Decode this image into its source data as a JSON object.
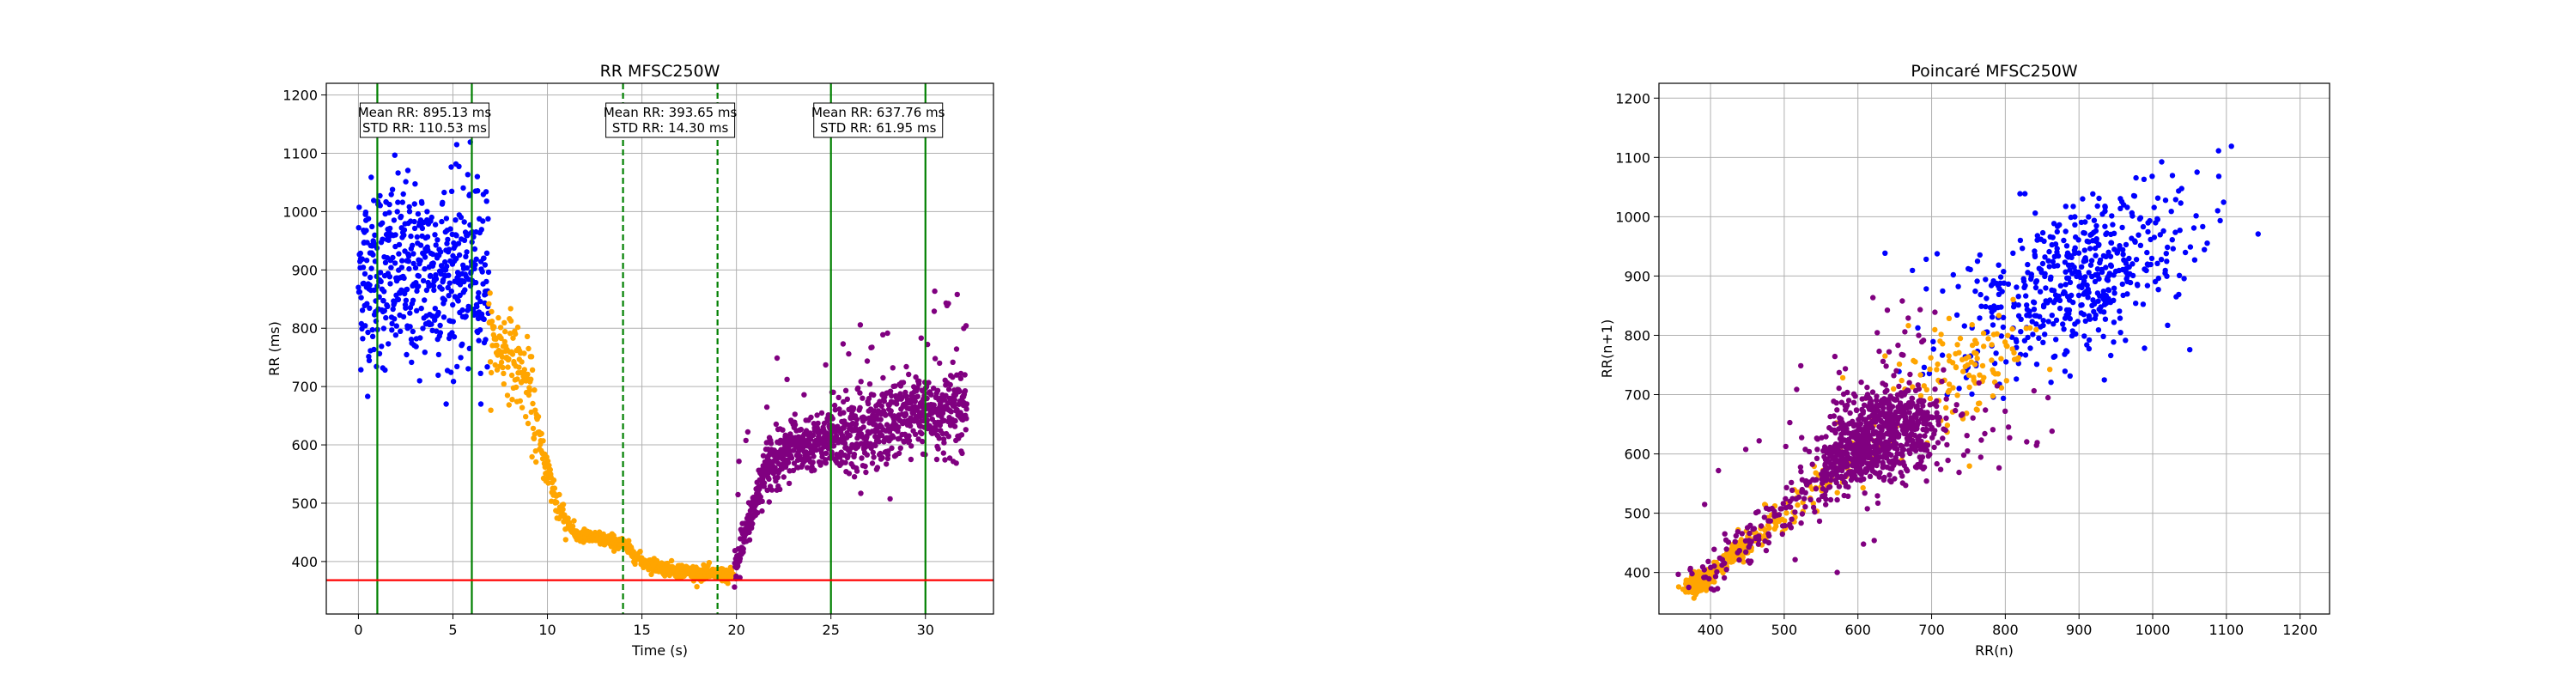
{
  "chart_data": [
    {
      "type": "scatter",
      "title": "RR MFSC250W",
      "xlabel": "Time (s)",
      "ylabel": "RR (ms)",
      "xlim": [
        -1.7,
        33.6
      ],
      "ylim": [
        310,
        1220
      ],
      "xticks": [
        "0",
        "5",
        "10",
        "15",
        "20",
        "25",
        "30"
      ],
      "yticks": [
        "400",
        "500",
        "600",
        "700",
        "800",
        "900",
        "1000",
        "1100",
        "1200"
      ],
      "grid": true,
      "colors": {
        "phase1": "#0000ff",
        "phase2": "#ffa500",
        "phase3": "#800080",
        "solid_line": "#008000",
        "dashed_line": "#008000",
        "threshold": "#ff0000"
      },
      "vertical_lines": [
        {
          "x": 1,
          "style": "solid"
        },
        {
          "x": 6,
          "style": "solid"
        },
        {
          "x": 14,
          "style": "dashed"
        },
        {
          "x": 19,
          "style": "dashed"
        },
        {
          "x": 25,
          "style": "solid"
        },
        {
          "x": 30,
          "style": "solid"
        }
      ],
      "threshold_y": 368,
      "annotations": [
        {
          "x": 3.5,
          "line1": "Mean RR: 895.13 ms",
          "line2": "STD RR: 110.53 ms"
        },
        {
          "x": 16.5,
          "line1": "Mean RR: 393.65 ms",
          "line2": "STD RR: 14.30 ms"
        },
        {
          "x": 27.5,
          "line1": "Mean RR: 637.76 ms",
          "line2": "STD RR: 61.95 ms"
        }
      ],
      "series": [
        {
          "color": "phase1",
          "x_range": [
            0,
            6.9
          ],
          "mean": 895,
          "std": 95,
          "count": 520
        },
        {
          "color": "phase2",
          "x_range": [
            6.9,
            19.9
          ],
          "trend": [
            [
              6.9,
              780
            ],
            [
              8.0,
              760
            ],
            [
              9.0,
              700
            ],
            [
              9.6,
              600
            ],
            [
              10.5,
              500
            ],
            [
              11.5,
              445
            ],
            [
              13.0,
              438
            ],
            [
              14.0,
              430
            ],
            [
              15.0,
              400
            ],
            [
              16.0,
              390
            ],
            [
              17.5,
              382
            ],
            [
              19.0,
              378
            ],
            [
              19.9,
              375
            ]
          ],
          "count": 620
        },
        {
          "color": "phase3",
          "x_range": [
            19.9,
            32.2
          ],
          "trend": [
            [
              19.9,
              375
            ],
            [
              20.5,
              450
            ],
            [
              21.5,
              560
            ],
            [
              23.0,
              600
            ],
            [
              25.0,
              610
            ],
            [
              27.0,
              625
            ],
            [
              29.0,
              650
            ],
            [
              32.2,
              665
            ]
          ],
          "count": 1000
        }
      ]
    },
    {
      "type": "scatter",
      "title": "Poincaré MFSC250W",
      "xlabel": "RR(n)",
      "ylabel": "RR(n+1)",
      "xlim": [
        330,
        1240
      ],
      "ylim": [
        330,
        1225
      ],
      "xticks": [
        "400",
        "500",
        "600",
        "700",
        "800",
        "900",
        "1000",
        "1100",
        "1200"
      ],
      "yticks": [
        "400",
        "500",
        "600",
        "700",
        "800",
        "900",
        "1000",
        "1100",
        "1200"
      ],
      "grid": true,
      "series": [
        {
          "color": "phase1",
          "x_range": [
            720,
            1170
          ],
          "count": 520
        },
        {
          "color": "phase2",
          "x_range": [
            370,
            870
          ],
          "count": 620
        },
        {
          "color": "phase3",
          "x_range": [
            370,
            940
          ],
          "count": 1000
        }
      ]
    }
  ]
}
